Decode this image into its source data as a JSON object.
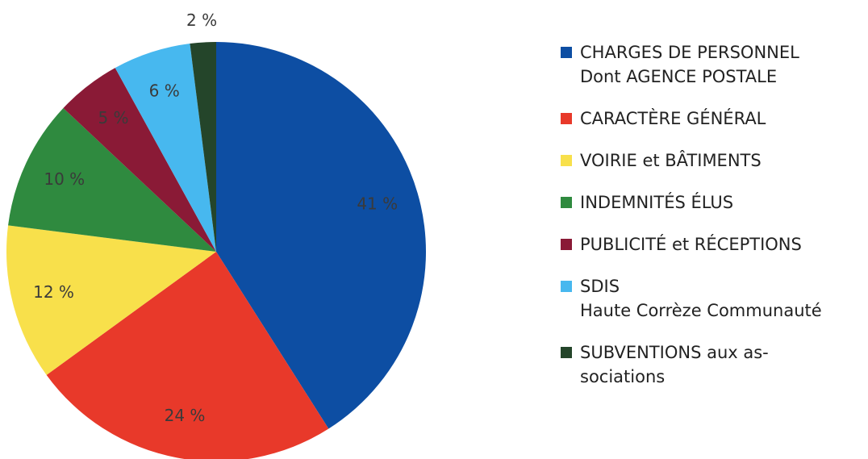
{
  "chart_data": {
    "type": "pie",
    "categories": [
      "CHARGES DE PERSONNEL\nDont AGENCE POSTALE",
      "CARACTÈRE GÉNÉRAL",
      "VOIRIE et BÂTIMENTS",
      "INDEMNITÉS ÉLUS",
      "PUBLICITÉ et RÉCEPTIONS",
      "SDIS\nHaute Corrèze Communauté",
      "SUBVENTIONS aux as-\nsociations"
    ],
    "values": [
      41,
      24,
      12,
      10,
      5,
      6,
      2
    ],
    "value_labels": [
      "41 %",
      "24 %",
      "12 %",
      "10 %",
      "5 %",
      "6 %",
      "2 %"
    ],
    "colors": [
      "#0d4ea3",
      "#e8392a",
      "#f8e04b",
      "#2f8a3f",
      "#8a1a36",
      "#47b8ef",
      "#24452a"
    ],
    "legend": "right"
  }
}
